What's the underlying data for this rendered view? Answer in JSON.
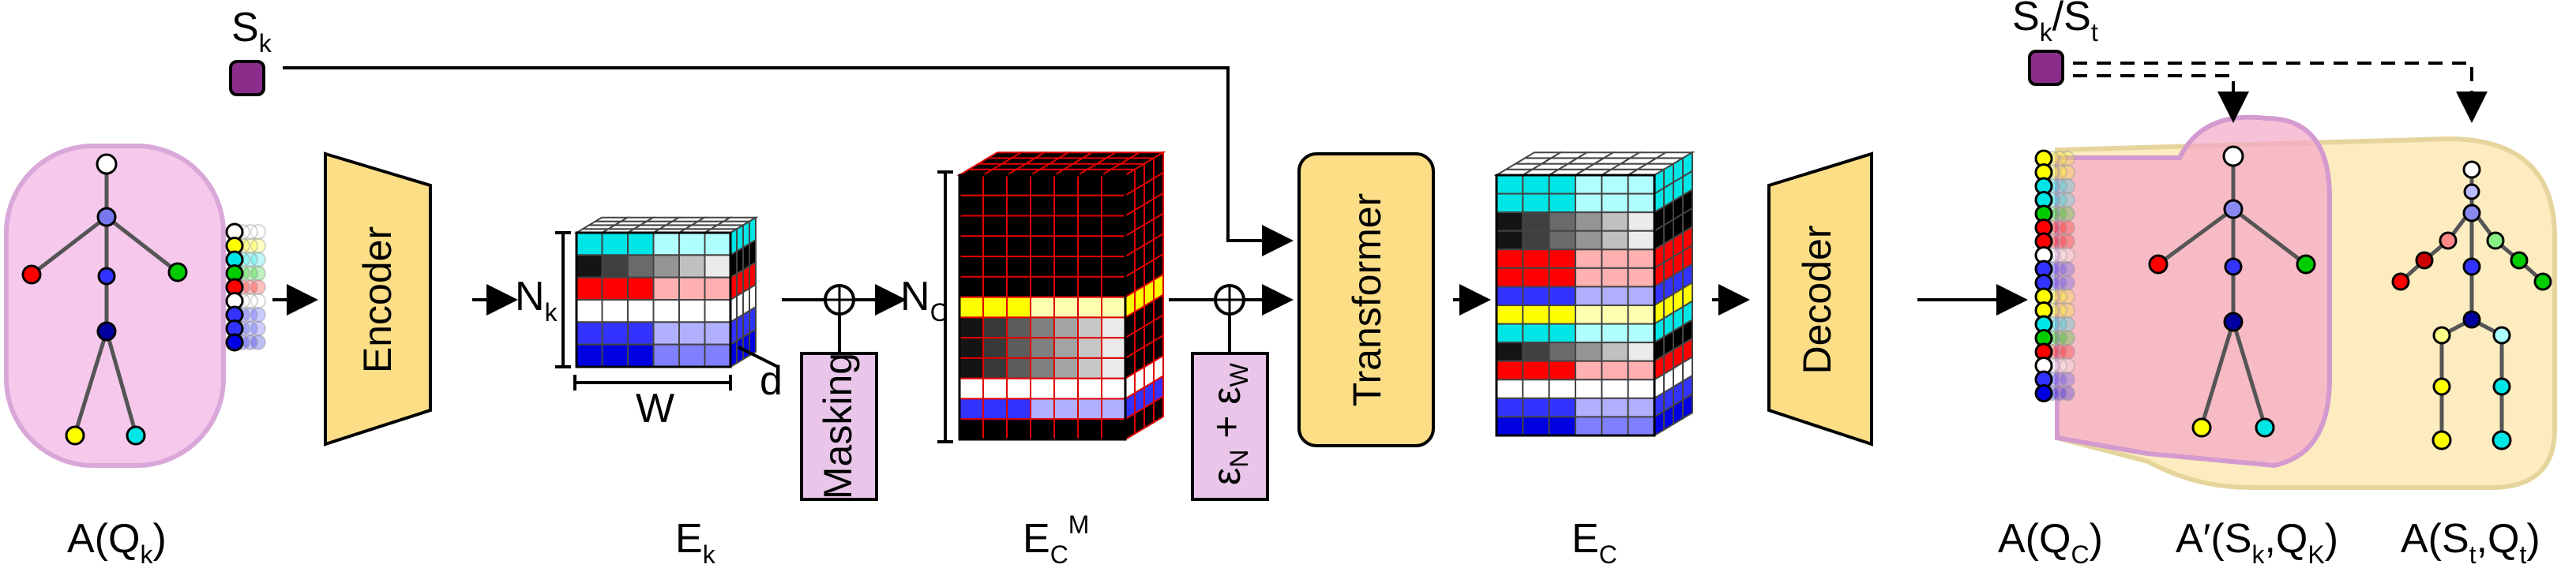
{
  "colors": {
    "pink_region": "#f6c8ec",
    "yellow_region": "#fbe9b4",
    "module_fill": "#fbde86",
    "masking_fill": "#e9c6e9",
    "style_token": "#8b2e8b",
    "joint_colors": [
      "#ffff00",
      "#00e5e5",
      "#00cc00",
      "#ff0000",
      "#ffffff",
      "#3333ff",
      "#0000e0"
    ]
  },
  "modules": {
    "encoder": "Encoder",
    "transformer": "Transformer",
    "decoder": "Decoder",
    "masking": "Masking"
  },
  "noise": {
    "base": "ε",
    "sub_n": "N",
    "plus": " + ",
    "sub_w": "W"
  },
  "tokens": {
    "style_left": {
      "base": "S",
      "sub": "k"
    },
    "style_right": {
      "base": "S",
      "sub1": "k",
      "slash": "/S",
      "sub2": "t"
    }
  },
  "dims": {
    "nk": {
      "base": "N",
      "sub": "k"
    },
    "nc": {
      "base": "N",
      "sub": "C"
    },
    "w": "W",
    "d": "d"
  },
  "bottom_labels": {
    "a_qk": {
      "pre": "A(Q",
      "sub": "k",
      "post": ")"
    },
    "ek": {
      "base": "E",
      "sub": "k"
    },
    "ecm": {
      "base": "E",
      "sub": "C",
      "sup": "M"
    },
    "ec": {
      "base": "E",
      "sub": "C"
    },
    "a_qc": {
      "pre": "A(Q",
      "sub": "C",
      "post": ")"
    },
    "a_prime": {
      "pre": "A′(S",
      "sub1": "k",
      "mid": ",Q",
      "sub2": "K",
      "post": ")"
    },
    "a_st": {
      "pre": "A(S",
      "sub1": "t",
      "mid": ",Q",
      "sub2": "t",
      "post": ")"
    }
  }
}
